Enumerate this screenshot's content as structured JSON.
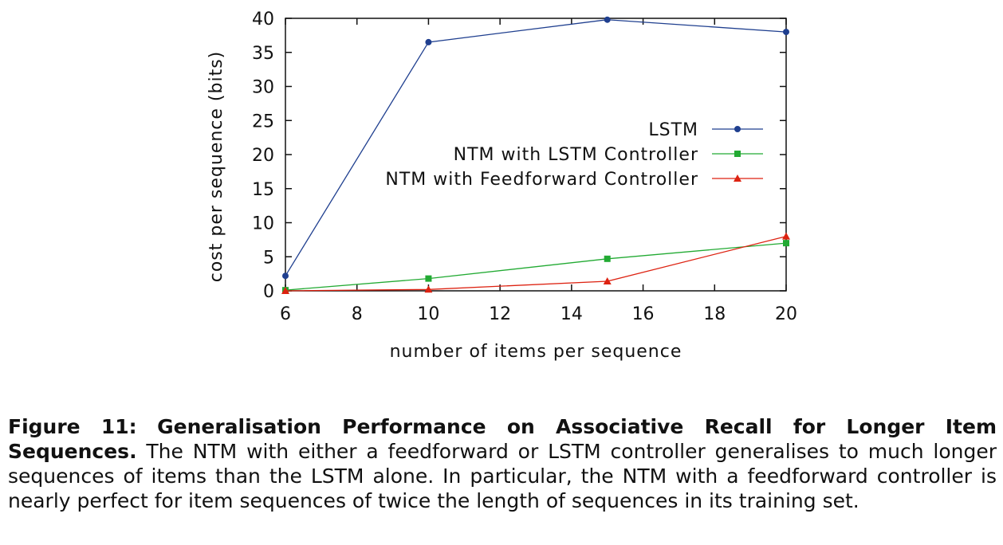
{
  "chart_data": {
    "type": "line",
    "xlabel": "number of items per sequence",
    "ylabel": "cost per sequence (bits)",
    "xlim": [
      6,
      20
    ],
    "ylim": [
      0,
      40
    ],
    "x_ticks": [
      6,
      8,
      10,
      12,
      14,
      16,
      18,
      20
    ],
    "y_ticks": [
      0,
      5,
      10,
      15,
      20,
      25,
      30,
      35,
      40
    ],
    "grid": false,
    "legend_position": "center-right",
    "series": [
      {
        "name": "LSTM",
        "color": "#1f3f8f",
        "marker": "circle",
        "x": [
          6,
          10,
          15,
          20
        ],
        "y": [
          2.2,
          36.5,
          39.8,
          38.0
        ]
      },
      {
        "name": "NTM with LSTM Controller",
        "color": "#22aa33",
        "marker": "square",
        "x": [
          6,
          10,
          15,
          20
        ],
        "y": [
          0.1,
          1.8,
          4.7,
          7.0
        ]
      },
      {
        "name": "NTM with Feedforward Controller",
        "color": "#dd2211",
        "marker": "triangle",
        "x": [
          6,
          10,
          15,
          20
        ],
        "y": [
          0.0,
          0.2,
          1.4,
          8.0
        ]
      }
    ]
  },
  "caption": {
    "label": "Figure 11:",
    "title": "Generalisation Performance on Associative Recall for Longer Item Sequences.",
    "body": "The NTM with either a feedforward or LSTM controller generalises to much longer sequences of items than the LSTM alone. In particular, the NTM with a feedforward controller is nearly perfect for item sequences of twice the length of sequences in its training set."
  }
}
